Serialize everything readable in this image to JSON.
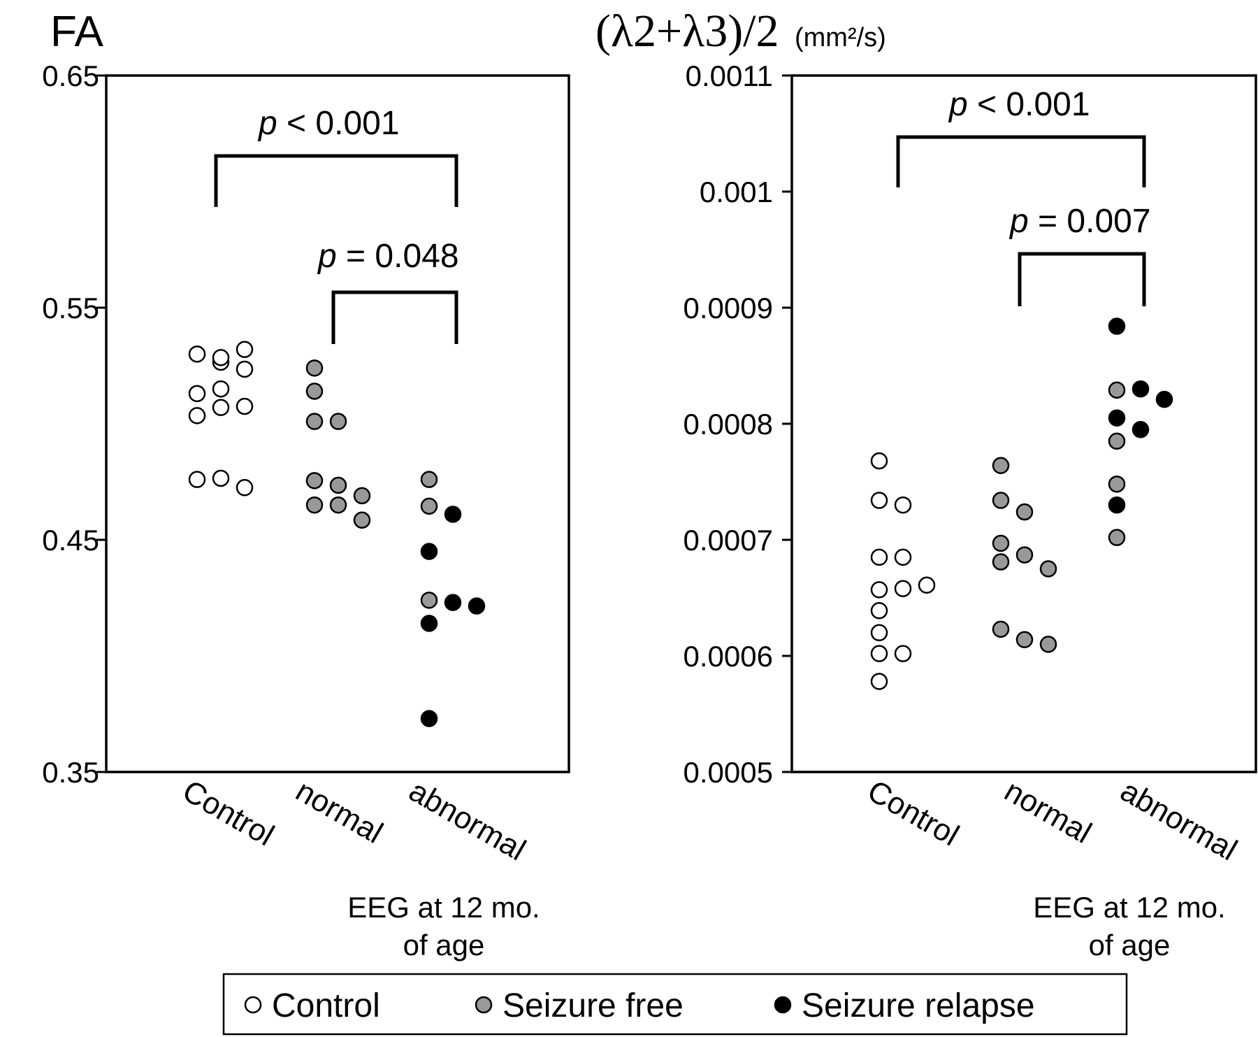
{
  "chart_data": [
    {
      "type": "scatter",
      "title": "FA",
      "ylim": [
        0.35,
        0.65
      ],
      "yticks": [
        "0.65",
        "0.55",
        "0.45",
        "0.35"
      ],
      "categories": [
        "Control",
        "normal",
        "abnormal"
      ],
      "group_label_line1": "EEG at 12 mo.",
      "group_label_line2": "of age",
      "series": [
        {
          "name": "Control",
          "color": "#ffffff",
          "points": [
            {
              "cat": 0,
              "y": 0.53
            },
            {
              "cat": 0,
              "y": 0.5265
            },
            {
              "cat": 0,
              "y": 0.532
            },
            {
              "cat": 0,
              "y": 0.5285
            },
            {
              "cat": 0,
              "y": 0.5235
            },
            {
              "cat": 0,
              "y": 0.513
            },
            {
              "cat": 0,
              "y": 0.515
            },
            {
              "cat": 0,
              "y": 0.507
            },
            {
              "cat": 0,
              "y": 0.5035
            },
            {
              "cat": 0,
              "y": 0.5075
            },
            {
              "cat": 0,
              "y": 0.476
            },
            {
              "cat": 0,
              "y": 0.4765
            },
            {
              "cat": 0,
              "y": 0.4725
            }
          ]
        },
        {
          "name": "Seizure free",
          "color": "#999999",
          "points": [
            {
              "cat": 1,
              "y": 0.524
            },
            {
              "cat": 1,
              "y": 0.514
            },
            {
              "cat": 1,
              "y": 0.501
            },
            {
              "cat": 1,
              "y": 0.501
            },
            {
              "cat": 1,
              "y": 0.4755
            },
            {
              "cat": 1,
              "y": 0.4735
            },
            {
              "cat": 1,
              "y": 0.469
            },
            {
              "cat": 1,
              "y": 0.465
            },
            {
              "cat": 1,
              "y": 0.465
            },
            {
              "cat": 1,
              "y": 0.4585
            },
            {
              "cat": 2,
              "y": 0.476
            },
            {
              "cat": 2,
              "y": 0.4645
            },
            {
              "cat": 2,
              "y": 0.424
            }
          ]
        },
        {
          "name": "Seizure relapse",
          "color": "#000000",
          "points": [
            {
              "cat": 2,
              "y": 0.461
            },
            {
              "cat": 2,
              "y": 0.445
            },
            {
              "cat": 2,
              "y": 0.423
            },
            {
              "cat": 2,
              "y": 0.4215
            },
            {
              "cat": 2,
              "y": 0.414
            },
            {
              "cat": 2,
              "y": 0.373
            }
          ]
        }
      ],
      "annotations": [
        {
          "from": 0,
          "to": 2,
          "prefix": "p",
          "text": " < 0.001"
        },
        {
          "from": 1,
          "to": 2,
          "prefix": "p",
          "text": " = 0.048"
        }
      ]
    },
    {
      "type": "scatter",
      "title": "(λ2+λ3)/2",
      "title_unit": "(mm²/s)",
      "ylim": [
        0.0005,
        0.0011
      ],
      "yticks": [
        "0.0011",
        "0.001",
        "0.0009",
        "0.0008",
        "0.0007",
        "0.0006",
        "0.0005"
      ],
      "categories": [
        "Control",
        "normal",
        "abnormal"
      ],
      "group_label_line1": "EEG at 12 mo.",
      "group_label_line2": "of age",
      "series": [
        {
          "name": "Control",
          "color": "#ffffff",
          "points": [
            {
              "cat": 0,
              "y": 0.000768
            },
            {
              "cat": 0,
              "y": 0.000734
            },
            {
              "cat": 0,
              "y": 0.00073
            },
            {
              "cat": 0,
              "y": 0.000685
            },
            {
              "cat": 0,
              "y": 0.000685
            },
            {
              "cat": 0,
              "y": 0.000657
            },
            {
              "cat": 0,
              "y": 0.000658
            },
            {
              "cat": 0,
              "y": 0.000661
            },
            {
              "cat": 0,
              "y": 0.000639
            },
            {
              "cat": 0,
              "y": 0.00062
            },
            {
              "cat": 0,
              "y": 0.000602
            },
            {
              "cat": 0,
              "y": 0.000602
            },
            {
              "cat": 0,
              "y": 0.000578
            }
          ]
        },
        {
          "name": "Seizure free",
          "color": "#999999",
          "points": [
            {
              "cat": 1,
              "y": 0.000764
            },
            {
              "cat": 1,
              "y": 0.000734
            },
            {
              "cat": 1,
              "y": 0.000724
            },
            {
              "cat": 1,
              "y": 0.000697
            },
            {
              "cat": 1,
              "y": 0.000687
            },
            {
              "cat": 1,
              "y": 0.000681
            },
            {
              "cat": 1,
              "y": 0.000675
            },
            {
              "cat": 1,
              "y": 0.000623
            },
            {
              "cat": 1,
              "y": 0.000614
            },
            {
              "cat": 1,
              "y": 0.00061
            },
            {
              "cat": 2,
              "y": 0.000829
            },
            {
              "cat": 2,
              "y": 0.000785
            },
            {
              "cat": 2,
              "y": 0.000748
            },
            {
              "cat": 2,
              "y": 0.000702
            }
          ]
        },
        {
          "name": "Seizure relapse",
          "color": "#000000",
          "points": [
            {
              "cat": 2,
              "y": 0.000884
            },
            {
              "cat": 2,
              "y": 0.00083
            },
            {
              "cat": 2,
              "y": 0.000821
            },
            {
              "cat": 2,
              "y": 0.000805
            },
            {
              "cat": 2,
              "y": 0.000795
            },
            {
              "cat": 2,
              "y": 0.00073
            }
          ]
        }
      ],
      "annotations": [
        {
          "from": 0,
          "to": 2,
          "prefix": "p",
          "text": " < 0.001"
        },
        {
          "from": 1,
          "to": 2,
          "prefix": "p",
          "text": " = 0.007"
        }
      ]
    }
  ],
  "legend": {
    "items": [
      {
        "label": "Control",
        "color": "#ffffff"
      },
      {
        "label": "Seizure free",
        "color": "#999999"
      },
      {
        "label": "Seizure relapse",
        "color": "#000000"
      }
    ]
  }
}
